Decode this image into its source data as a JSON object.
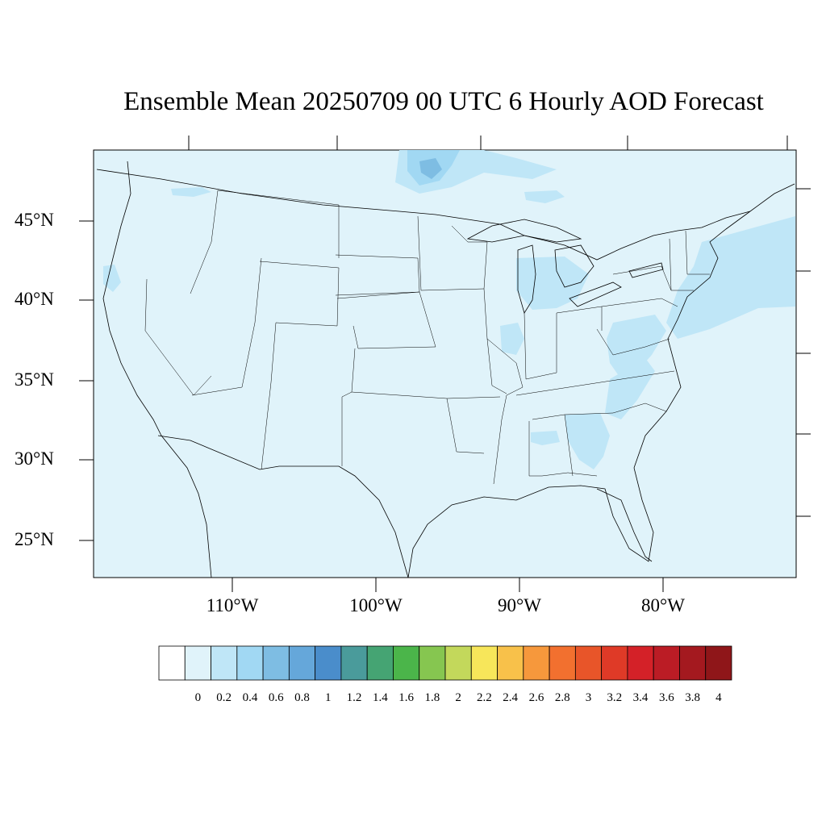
{
  "title": "Ensemble Mean 20250709 00 UTC 6 Hourly AOD Forecast",
  "map": {
    "projection": "lambert-conformal",
    "region": "CONUS",
    "lat_labels": [
      "45°N",
      "40°N",
      "35°N",
      "30°N",
      "25°N"
    ],
    "lon_labels": [
      "110°W",
      "100°W",
      "90°W",
      "80°W"
    ],
    "background_field_color": "#e0f3fa",
    "feature_colors": {
      "0.2-0.4": "#bfe6f7",
      "0.4-0.6": "#a1d8f3",
      "0.6-0.8": "#7ebde3"
    },
    "features": [
      "coastlines",
      "state-borders",
      "country-borders",
      "great-lakes"
    ]
  },
  "colorbar": {
    "labels": [
      "0",
      "0.2",
      "0.4",
      "0.6",
      "0.8",
      "1",
      "1.2",
      "1.4",
      "1.6",
      "1.8",
      "2",
      "2.2",
      "2.4",
      "2.6",
      "2.8",
      "3",
      "3.2",
      "3.4",
      "3.6",
      "3.8",
      "4"
    ],
    "colors": [
      "#ffffff",
      "#e0f3fa",
      "#bfe6f7",
      "#a1d8f3",
      "#7ebde3",
      "#65a7da",
      "#4a8dcb",
      "#4a9b9b",
      "#45a473",
      "#4bb54a",
      "#86c650",
      "#c3d85b",
      "#f7e65a",
      "#f8c14a",
      "#f6983c",
      "#f2702f",
      "#e85529",
      "#df3a27",
      "#d42128",
      "#bb1c25",
      "#a4191f",
      "#8f1619"
    ]
  }
}
